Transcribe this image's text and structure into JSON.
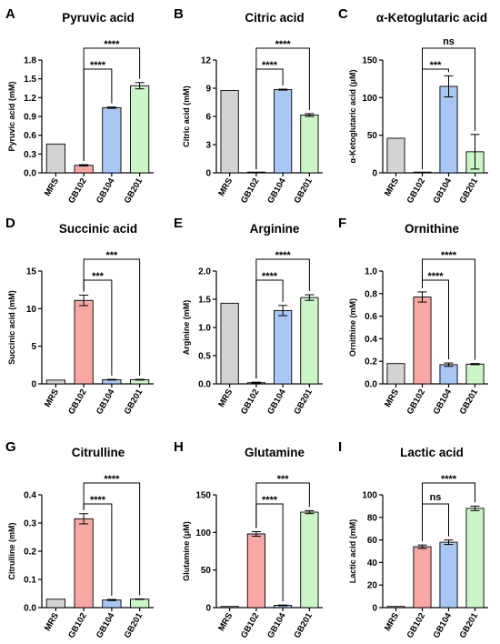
{
  "chart_data": [
    {
      "panel": "A",
      "title": "Pyruvic acid",
      "type": "bar",
      "ylabel": "Pyruvic acid (mM)",
      "categories": [
        "MRS",
        "GB102",
        "GB104",
        "GB201"
      ],
      "values": [
        0.46,
        0.12,
        1.04,
        1.39
      ],
      "errors": [
        0,
        0.01,
        0.01,
        0.05
      ],
      "yticks": [
        "0.0",
        "0.3",
        "0.6",
        "0.9",
        "1.2",
        "1.5",
        "1.8"
      ],
      "ylim": [
        0,
        1.8
      ],
      "colors": [
        "#d3d3d3",
        "#f8a7a4",
        "#a9c7f5",
        "#ccf5c8"
      ],
      "comparisons": [
        {
          "from": "GB102",
          "to": "GB104",
          "label": "****"
        },
        {
          "from": "GB102",
          "to": "GB201",
          "label": "****"
        }
      ]
    },
    {
      "panel": "B",
      "title": "Citric acid",
      "type": "bar",
      "ylabel": "Citric acid (mM)",
      "categories": [
        "MRS",
        "GB102",
        "GB104",
        "GB201"
      ],
      "values": [
        8.75,
        0,
        8.85,
        6.15
      ],
      "errors": [
        0,
        0,
        0.05,
        0.15
      ],
      "yticks": [
        "0",
        "3",
        "6",
        "9",
        "12"
      ],
      "ylim": [
        0,
        12
      ],
      "colors": [
        "#d3d3d3",
        "#f8a7a4",
        "#a9c7f5",
        "#ccf5c8"
      ],
      "comparisons": [
        {
          "from": "GB102",
          "to": "GB104",
          "label": "****"
        },
        {
          "from": "GB102",
          "to": "GB201",
          "label": "****"
        }
      ]
    },
    {
      "panel": "C",
      "title": "α-Ketoglutaric acid",
      "type": "bar",
      "ylabel": "α-Ketoglutaric acid (μM)",
      "categories": [
        "MRS",
        "GB102",
        "GB104",
        "GB201"
      ],
      "values": [
        46,
        0,
        115,
        28
      ],
      "errors": [
        0,
        0,
        14,
        23
      ],
      "yticks": [
        "0",
        "50",
        "100",
        "150"
      ],
      "ylim": [
        0,
        150
      ],
      "colors": [
        "#d3d3d3",
        "#f8a7a4",
        "#a9c7f5",
        "#ccf5c8"
      ],
      "comparisons": [
        {
          "from": "GB102",
          "to": "GB104",
          "label": "***"
        },
        {
          "from": "GB102",
          "to": "GB201",
          "label": "ns"
        }
      ]
    },
    {
      "panel": "D",
      "title": "Succinic acid",
      "type": "bar",
      "ylabel": "Succinic acid (mM)",
      "categories": [
        "MRS",
        "GB102",
        "GB104",
        "GB201"
      ],
      "values": [
        0.5,
        11.1,
        0.55,
        0.55
      ],
      "errors": [
        0,
        0.7,
        0.05,
        0.05
      ],
      "yticks": [
        "0",
        "5",
        "10",
        "15"
      ],
      "ylim": [
        0,
        15
      ],
      "colors": [
        "#d3d3d3",
        "#f8a7a4",
        "#a9c7f5",
        "#ccf5c8"
      ],
      "comparisons": [
        {
          "from": "GB102",
          "to": "GB104",
          "label": "***"
        },
        {
          "from": "GB102",
          "to": "GB201",
          "label": "***"
        }
      ]
    },
    {
      "panel": "E",
      "title": "Arginine",
      "type": "bar",
      "ylabel": "Arginine (mM)",
      "categories": [
        "MRS",
        "GB102",
        "GB104",
        "GB201"
      ],
      "values": [
        1.43,
        0.02,
        1.3,
        1.53
      ],
      "errors": [
        0,
        0.01,
        0.09,
        0.05
      ],
      "yticks": [
        "0.0",
        "0.5",
        "1.0",
        "1.5",
        "2.0"
      ],
      "ylim": [
        0,
        2.0
      ],
      "colors": [
        "#d3d3d3",
        "#f8a7a4",
        "#a9c7f5",
        "#ccf5c8"
      ],
      "comparisons": [
        {
          "from": "GB102",
          "to": "GB104",
          "label": "****"
        },
        {
          "from": "GB102",
          "to": "GB201",
          "label": "****"
        }
      ]
    },
    {
      "panel": "F",
      "title": "Ornithine",
      "type": "bar",
      "ylabel": "Ornithine (mM)",
      "categories": [
        "MRS",
        "GB102",
        "GB104",
        "GB201"
      ],
      "values": [
        0.18,
        0.77,
        0.17,
        0.175
      ],
      "errors": [
        0,
        0.045,
        0.015,
        0.005
      ],
      "yticks": [
        "0.0",
        "0.2",
        "0.4",
        "0.6",
        "0.8",
        "1.0"
      ],
      "ylim": [
        0,
        1.0
      ],
      "colors": [
        "#d3d3d3",
        "#f8a7a4",
        "#a9c7f5",
        "#ccf5c8"
      ],
      "comparisons": [
        {
          "from": "GB102",
          "to": "GB104",
          "label": "****"
        },
        {
          "from": "GB102",
          "to": "GB201",
          "label": "****"
        }
      ]
    },
    {
      "panel": "G",
      "title": "Citrulline",
      "type": "bar",
      "ylabel": "Citrulline (mM)",
      "categories": [
        "MRS",
        "GB102",
        "GB104",
        "GB201"
      ],
      "values": [
        0.03,
        0.315,
        0.027,
        0.03
      ],
      "errors": [
        0,
        0.018,
        0.002,
        0.001
      ],
      "yticks": [
        "0.0",
        "0.1",
        "0.2",
        "0.3",
        "0.4"
      ],
      "ylim": [
        0,
        0.4
      ],
      "colors": [
        "#d3d3d3",
        "#f8a7a4",
        "#a9c7f5",
        "#ccf5c8"
      ],
      "comparisons": [
        {
          "from": "GB102",
          "to": "GB104",
          "label": "****"
        },
        {
          "from": "GB102",
          "to": "GB201",
          "label": "****"
        }
      ]
    },
    {
      "panel": "H",
      "title": "Glutamine",
      "type": "bar",
      "ylabel": "Glutamine (μM)",
      "categories": [
        "MRS",
        "GB102",
        "GB104",
        "GB201"
      ],
      "values": [
        1.5,
        98,
        3,
        127
      ],
      "errors": [
        0,
        3,
        0.5,
        2
      ],
      "yticks": [
        "0",
        "50",
        "100",
        "150"
      ],
      "ylim": [
        0,
        150
      ],
      "colors": [
        "#d3d3d3",
        "#f8a7a4",
        "#a9c7f5",
        "#ccf5c8"
      ],
      "comparisons": [
        {
          "from": "GB102",
          "to": "GB104",
          "label": "****"
        },
        {
          "from": "GB102",
          "to": "GB201",
          "label": "***"
        }
      ]
    },
    {
      "panel": "I",
      "title": "Lactic acid",
      "type": "bar",
      "ylabel": "Lactic acid (mM)",
      "categories": [
        "MRS",
        "GB102",
        "GB104",
        "GB201"
      ],
      "values": [
        1,
        54,
        58,
        88
      ],
      "errors": [
        0,
        1.5,
        2,
        2
      ],
      "yticks": [
        "0",
        "20",
        "40",
        "60",
        "80",
        "100"
      ],
      "ylim": [
        0,
        100
      ],
      "colors": [
        "#d3d3d3",
        "#f8a7a4",
        "#a9c7f5",
        "#ccf5c8"
      ],
      "comparisons": [
        {
          "from": "GB102",
          "to": "GB104",
          "label": "ns"
        },
        {
          "from": "GB102",
          "to": "GB201",
          "label": "****"
        }
      ]
    }
  ]
}
